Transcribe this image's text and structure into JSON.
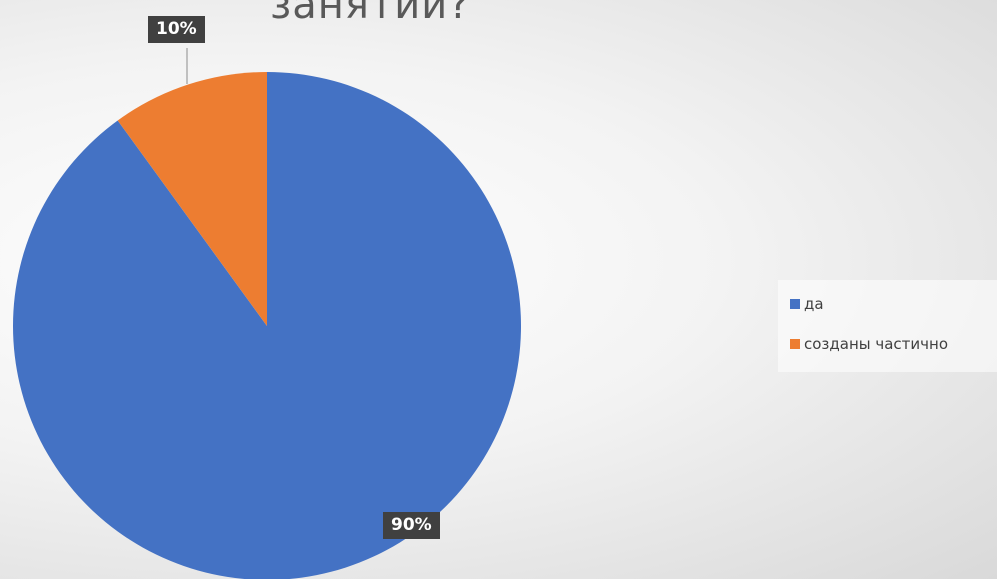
{
  "chart_data": {
    "type": "pie",
    "title": "занятий?",
    "slices": [
      {
        "label": "да",
        "value": 90,
        "color": "#4472C4",
        "data_label": "90%"
      },
      {
        "label": "созданы частично",
        "value": 10,
        "color": "#ED7D31",
        "data_label": "10%"
      }
    ],
    "legend": {
      "position": "right"
    }
  }
}
